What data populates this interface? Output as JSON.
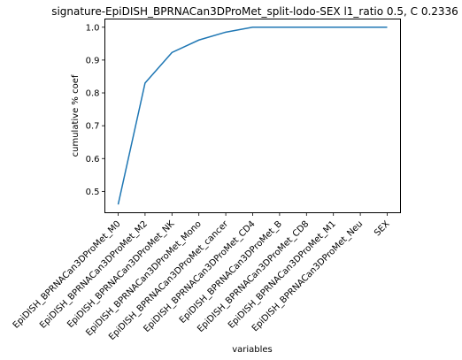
{
  "chart_data": {
    "type": "line",
    "title": "signature-EpiDISH_BPRNACan3DProMet_split-lodo-SEX l1_ratio 0.5, C 0.2336",
    "xlabel": "variables",
    "ylabel": "cumulative % coef",
    "categories": [
      "EpiDISH_BPRNACan3DProMet_M0",
      "EpiDISH_BPRNACan3DProMet_M2",
      "EpiDISH_BPRNACan3DProMet_NK",
      "EpiDISH_BPRNACan3DProMet_Mono",
      "EpiDISH_BPRNACan3DProMet_cancer",
      "EpiDISH_BPRNACan3DProMet_CD4",
      "EpiDISH_BPRNACan3DProMet_B",
      "EpiDISH_BPRNACan3DProMet_CD8",
      "EpiDISH_BPRNACan3DProMet_M1",
      "EpiDISH_BPRNACan3DProMet_Neu",
      "SEX"
    ],
    "series": [
      {
        "values": [
          0.46,
          0.83,
          0.923,
          0.961,
          0.985,
          1.0,
          1.0,
          1.0,
          1.0,
          1.0,
          1.0
        ]
      }
    ],
    "ylim": [
      0.435,
      1.025
    ],
    "yticks": [
      "0.5",
      "0.6",
      "0.7",
      "0.8",
      "0.9",
      "1.0"
    ],
    "line_color": "#1f77b4",
    "grid": false,
    "legend": "none"
  }
}
